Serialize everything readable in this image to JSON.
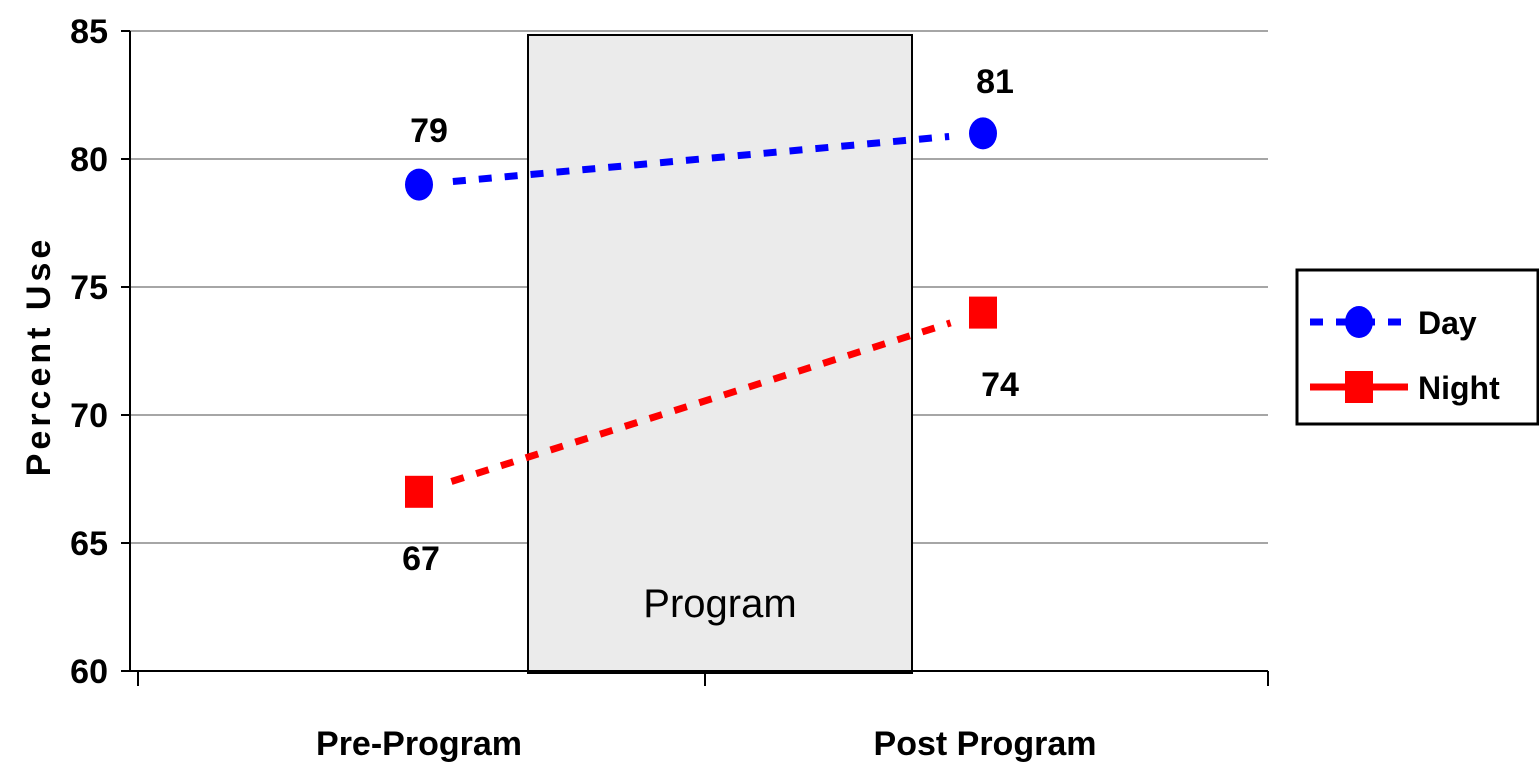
{
  "chart_data": {
    "type": "line",
    "categories": [
      "Pre-Program",
      "Post Program"
    ],
    "series": [
      {
        "name": "Day",
        "values": [
          79,
          81
        ],
        "color": "#0000ff",
        "marker": "circle",
        "line_style": "dotted"
      },
      {
        "name": "Night",
        "values": [
          67,
          74
        ],
        "color": "#ff0000",
        "marker": "square",
        "line_style": "dotted"
      }
    ],
    "data_labels": {
      "Day": [
        "79",
        "81"
      ],
      "Night": [
        "67",
        "74"
      ]
    },
    "ylabel": "Percent Use",
    "xlabel": "",
    "ylim": [
      60,
      85
    ],
    "yticks": [
      "60",
      "65",
      "70",
      "75",
      "80",
      "85"
    ],
    "grid": true,
    "legend_position": "right",
    "annotation": {
      "text": "Program",
      "fill": "#ebebeb"
    }
  }
}
